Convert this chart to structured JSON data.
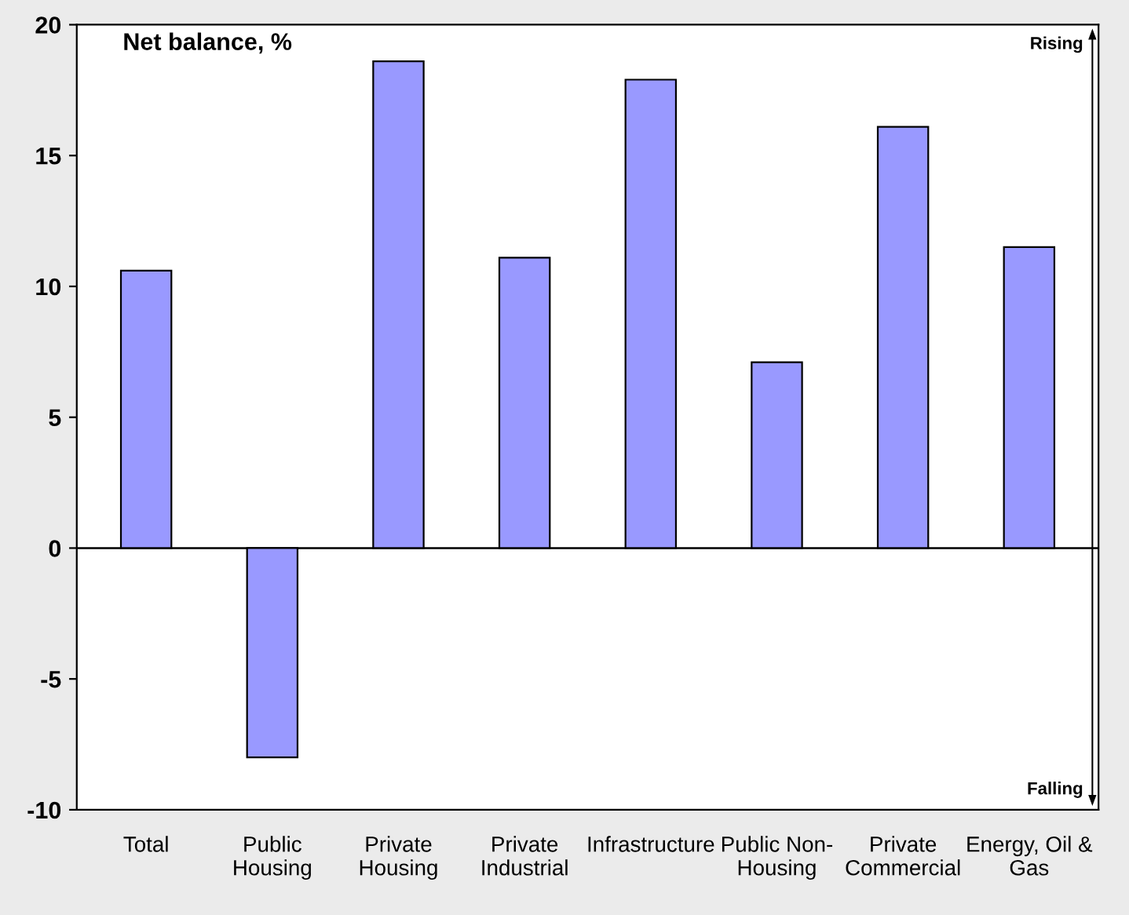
{
  "chart_data": {
    "type": "bar",
    "ylabel": "Net balance, %",
    "categories": [
      "Total",
      "Public\nHousing",
      "Private\nHousing",
      "Private\nIndustrial",
      "Infrastructure",
      "Public Non-\nHousing",
      "Private\nCommercial",
      "Energy, Oil &\nGas"
    ],
    "values": [
      10.6,
      -8.0,
      18.6,
      11.1,
      17.9,
      7.1,
      16.1,
      11.5
    ],
    "color": "#9999ff",
    "ylim": [
      -10,
      20
    ],
    "yticks": [
      -10,
      -5,
      0,
      5,
      10,
      15,
      20
    ],
    "ref_lines": [
      {
        "axis": "y",
        "value": 0,
        "color": "#000000"
      }
    ],
    "annotations": [
      "Rising",
      "Falling"
    ],
    "grid": false,
    "legend": false
  }
}
